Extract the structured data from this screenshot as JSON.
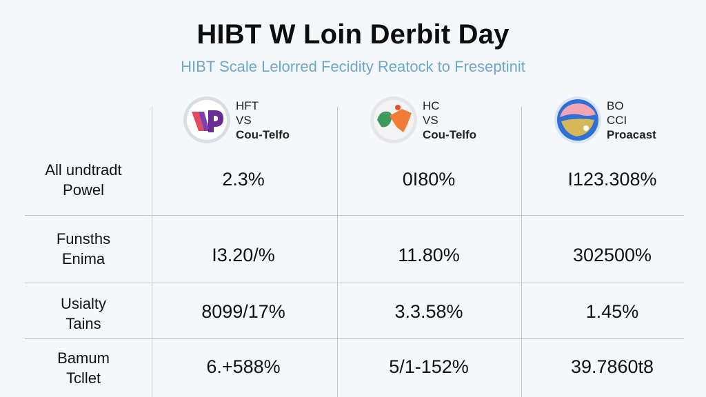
{
  "header": {
    "title": "HIBT W Loin Derbit Day",
    "subtitle": "HIBT Scale Lelorred Fecidity Reatock to Freseptinit"
  },
  "columns": [
    {
      "line1": "HFT",
      "line2": "VS",
      "line3": "Cou-Telfo",
      "icon": "hft-logo-icon"
    },
    {
      "line1": "HC",
      "line2": "VS",
      "line3": "Cou-Telfo",
      "icon": "hc-logo-icon"
    },
    {
      "line1": "BO",
      "line2": "CCI",
      "line3": "Proacast",
      "icon": "bo-logo-icon"
    }
  ],
  "rows": [
    {
      "label_line1": "All undtradt",
      "label_line2": "Powel",
      "values": [
        "2.3%",
        "0I80%",
        "I123.308%"
      ]
    },
    {
      "label_line1": "Funsths",
      "label_line2": "Enima",
      "values": [
        "I3.20/%",
        "11.80%",
        "302500%"
      ]
    },
    {
      "label_line1": "Usialty",
      "label_line2": "Tains",
      "values": [
        "8099/17%",
        "3.3.58%",
        "1.45%"
      ]
    },
    {
      "label_line1": "Bamum",
      "label_line2": "Tcllet",
      "values": [
        "6.+588%",
        "5/1-152%",
        "39.7860t8"
      ]
    }
  ],
  "colors": {
    "background": "#f5f8fb",
    "subtitle": "#6fa6c9",
    "grid": "#b9c7d3"
  }
}
